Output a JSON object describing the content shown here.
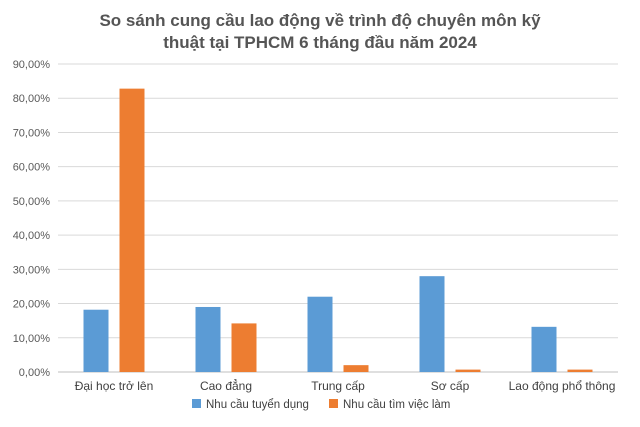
{
  "chart_data": {
    "type": "bar",
    "title_lines": [
      "So sánh cung cầu lao động về trình độ chuyên môn kỹ",
      "thuật tại TPHCM 6 tháng đầu năm 2024"
    ],
    "categories": [
      "Đại học trở lên",
      "Cao đẳng",
      "Trung cấp",
      "Sơ cấp",
      "Lao động phổ thông"
    ],
    "series": [
      {
        "name": "Nhu cầu tuyển dụng",
        "color": "#5B9BD5",
        "values": [
          18.2,
          19.0,
          22.0,
          28.0,
          13.2
        ]
      },
      {
        "name": "Nhu cầu tìm việc làm",
        "color": "#ED7D31",
        "values": [
          82.8,
          14.2,
          2.0,
          0.7,
          0.7
        ]
      }
    ],
    "y_ticks": [
      "0,00%",
      "10,00%",
      "20,00%",
      "30,00%",
      "40,00%",
      "50,00%",
      "60,00%",
      "70,00%",
      "80,00%",
      "90,00%"
    ],
    "ylim": [
      0,
      90
    ],
    "grid": true,
    "legend_position": "bottom"
  }
}
